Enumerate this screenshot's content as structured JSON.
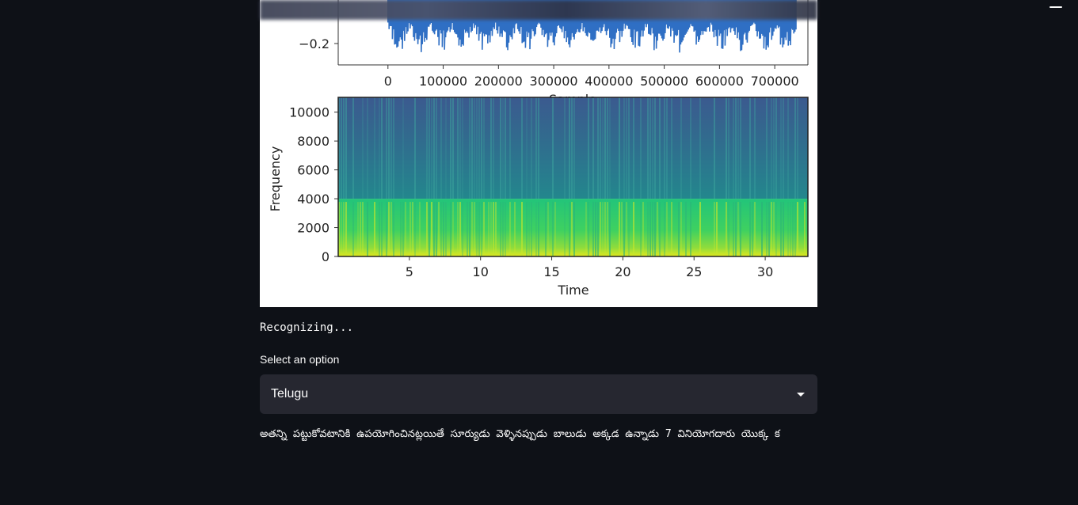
{
  "header": {
    "menu_icon": "hamburger-icon"
  },
  "waveform_plot": {
    "ytick_label": "−0.2",
    "xtick_labels": [
      "0",
      "100000",
      "200000",
      "300000",
      "400000",
      "500000",
      "600000",
      "700000"
    ],
    "xtick_values": [
      0,
      100000,
      200000,
      300000,
      400000,
      500000,
      600000,
      700000
    ],
    "xlim": [
      -90000,
      760000
    ],
    "xlabel": "Sample"
  },
  "spectrogram_plot": {
    "ylabel": "Frequency",
    "xlabel": "Time",
    "ytick_labels": [
      "0",
      "2000",
      "4000",
      "6000",
      "8000",
      "10000"
    ],
    "ytick_values": [
      0,
      2000,
      4000,
      6000,
      8000,
      10000
    ],
    "ylim": [
      0,
      11025
    ],
    "xtick_labels": [
      "5",
      "10",
      "15",
      "20",
      "25",
      "30"
    ],
    "xtick_values": [
      5,
      10,
      15,
      20,
      25,
      30
    ],
    "xlim": [
      0,
      33
    ]
  },
  "status_text": "Recognizing...",
  "select": {
    "label": "Select an option",
    "value": "Telugu",
    "icon": "caret-down-icon"
  },
  "result_text": "అతన్ని పట్టుకోవటానికి ఉపయోగించినట్లయితే సూర్యుడు వెళ్ళినప్పుడు బాలుడు అక్కడ ఉన్నాడు 7 వినియోగదారు యొక్క క"
}
